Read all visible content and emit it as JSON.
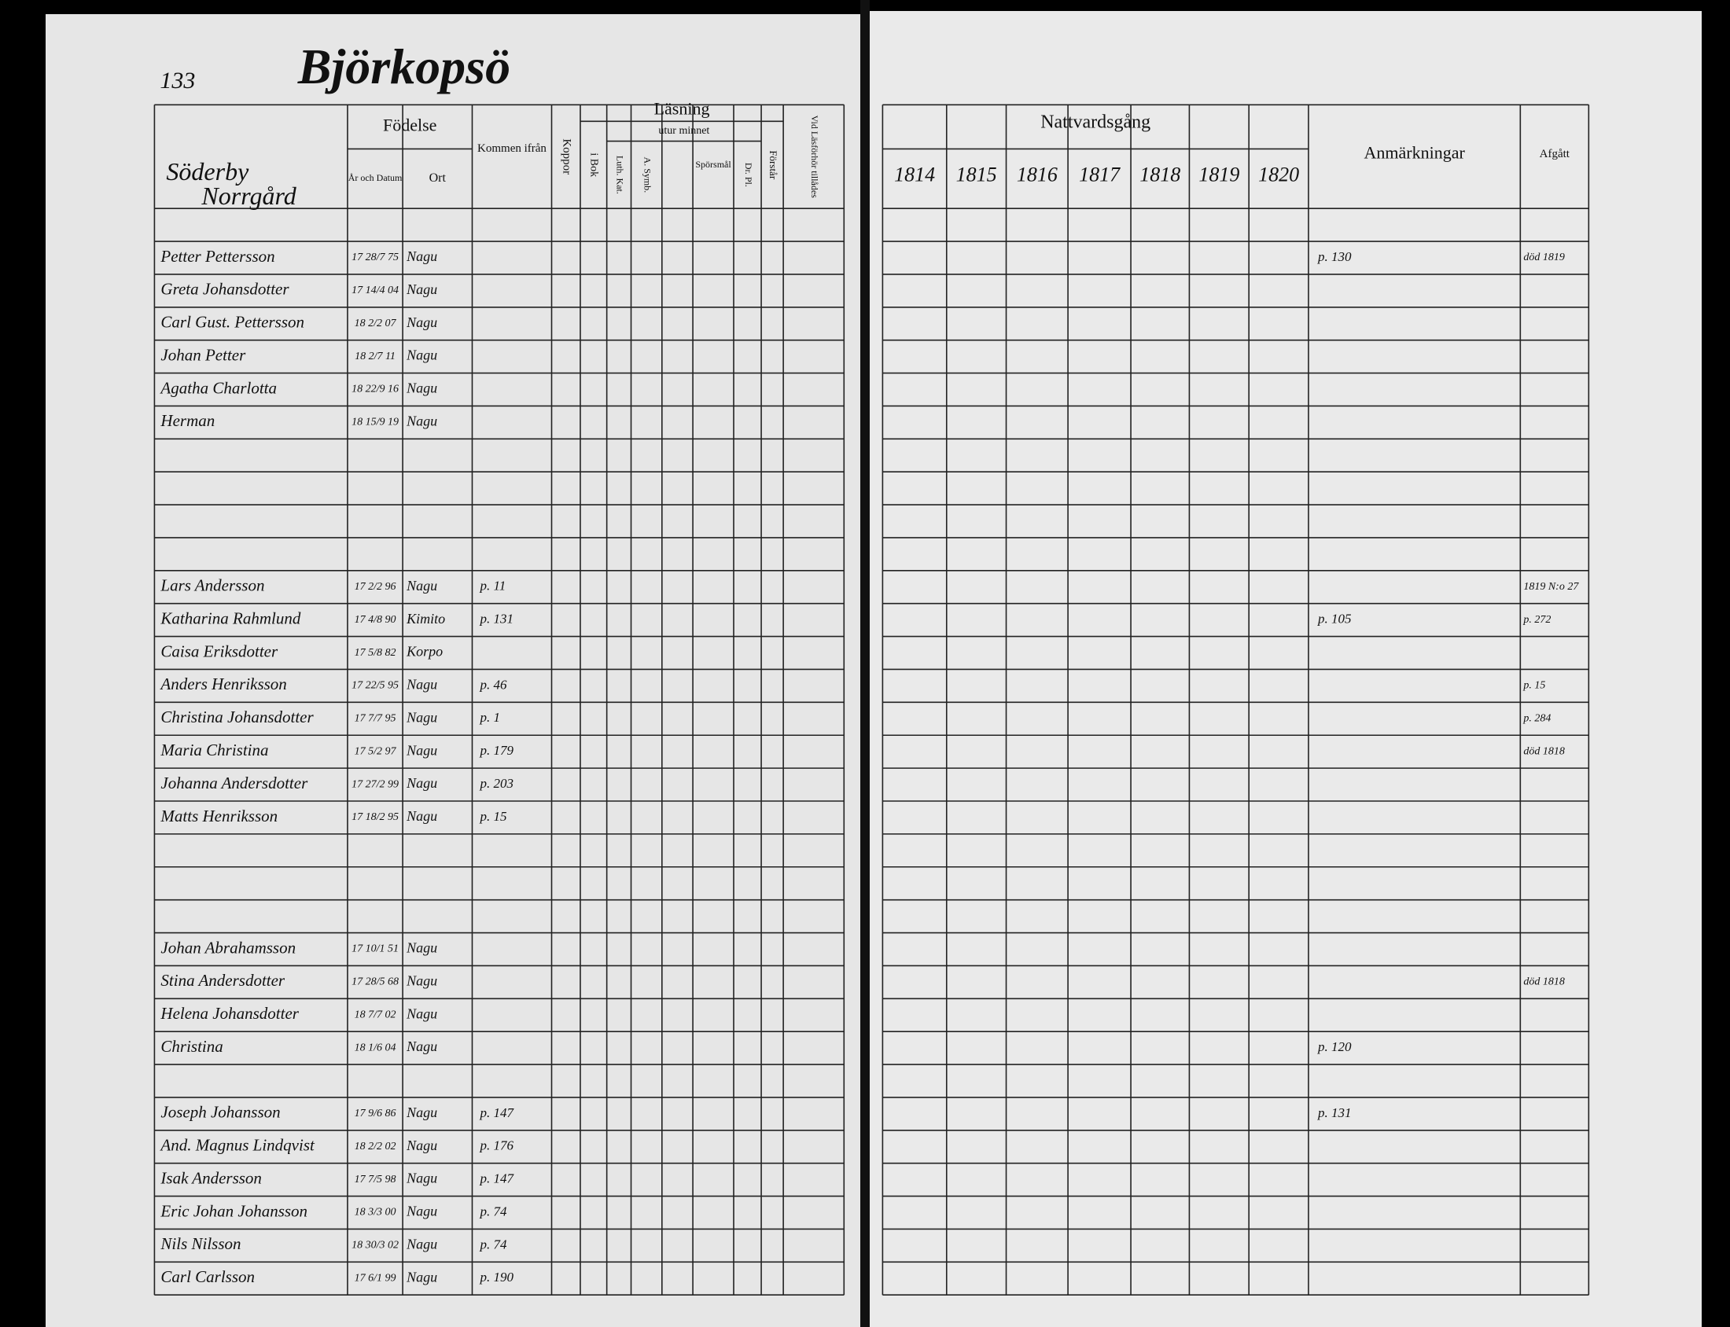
{
  "left_page": {
    "page_number": "133",
    "title": "Björkopsö",
    "place": [
      "Söderby",
      "Norrgård"
    ],
    "columns": {
      "birth": "Födelse",
      "date": "År och Datum",
      "birthplace": "Ort",
      "from": "Kommen ifrån",
      "pox": "Koppor",
      "reading": "Läsning",
      "memory": "utur minnet",
      "book": "i Bok",
      "catechism": "Luth. Kat.",
      "symbol": "A. Symb.",
      "questions": "Spörsmål",
      "dr": "Dr. Pl.",
      "understands": "Förstår",
      "admitted": "Vid Läsförhör tillådes"
    }
  },
  "right_page": {
    "communion": "Nattvardsgång",
    "years": [
      "1814",
      "1815",
      "1816",
      "1817",
      "1818",
      "1819",
      "1820"
    ],
    "remarks": "Anmärkningar",
    "departed": "Afgått"
  },
  "households": [
    [
      {
        "name": "Petter Pettersson",
        "born": "17 28/7 75",
        "place": "Nagu",
        "remark": "p. 130",
        "departed": "död 1819"
      },
      {
        "name": "Greta Johansdotter",
        "born": "17 14/4 04",
        "place": "Nagu"
      },
      {
        "name": "Carl Gust. Pettersson",
        "born": "18 2/2 07",
        "place": "Nagu"
      },
      {
        "name": "Johan Petter",
        "born": "18 2/7 11",
        "place": "Nagu"
      },
      {
        "name": "Agatha Charlotta",
        "born": "18 22/9 16",
        "place": "Nagu"
      },
      {
        "name": "Herman",
        "born": "18 15/9 19",
        "place": "Nagu"
      }
    ],
    [
      {
        "name": "Lars Andersson",
        "born": "17 2/2 96",
        "place": "Nagu",
        "from": "p. 11",
        "departed": "1819 N:o 27"
      },
      {
        "name": "Katharina Rahmlund",
        "born": "17 4/8 90",
        "place": "Kimito",
        "from": "p. 131",
        "remark": "p. 105",
        "departed": "p. 272"
      },
      {
        "name": "Caisa Eriksdotter",
        "born": "17 5/8 82",
        "place": "Korpo"
      },
      {
        "name": "Anders Henriksson",
        "born": "17 22/5 95",
        "place": "Nagu",
        "from": "p. 46",
        "departed": "p. 15"
      },
      {
        "name": "Christina Johansdotter",
        "born": "17 7/7 95",
        "place": "Nagu",
        "from": "p. 1",
        "departed": "p. 284"
      },
      {
        "name": "Maria Christina",
        "born": "17 5/2 97",
        "place": "Nagu",
        "from": "p. 179",
        "departed": "död 1818"
      },
      {
        "name": "Johanna Andersdotter",
        "born": "17 27/2 99",
        "place": "Nagu",
        "from": "p. 203"
      },
      {
        "name": "Matts Henriksson",
        "born": "17 18/2 95",
        "place": "Nagu",
        "from": "p. 15"
      }
    ],
    [
      {
        "name": "Johan Abrahamsson",
        "born": "17 10/1 51",
        "place": "Nagu"
      },
      {
        "name": "Stina Andersdotter",
        "born": "17 28/5 68",
        "place": "Nagu",
        "departed": "död 1818"
      },
      {
        "name": "Helena Johansdotter",
        "born": "18 7/7 02",
        "place": "Nagu"
      },
      {
        "name": "Christina",
        "born": "18 1/6 04",
        "place": "Nagu",
        "remark": "p. 120"
      }
    ],
    [
      {
        "name": "Joseph Johansson",
        "born": "17 9/6 86",
        "place": "Nagu",
        "from": "p. 147",
        "remark": "p. 131"
      },
      {
        "name": "And. Magnus Lindqvist",
        "born": "18 2/2 02",
        "place": "Nagu",
        "from": "p. 176"
      },
      {
        "name": "Isak Andersson",
        "born": "17 7/5 98",
        "place": "Nagu",
        "from": "p. 147"
      },
      {
        "name": "Eric Johan Johansson",
        "born": "18 3/3 00",
        "place": "Nagu",
        "from": "p. 74"
      },
      {
        "name": "Nils Nilsson",
        "born": "18 30/3 02",
        "place": "Nagu",
        "from": "p. 74"
      },
      {
        "name": "Carl Carlsson",
        "born": "17 6/1 99",
        "place": "Nagu",
        "from": "p. 190"
      }
    ]
  ]
}
